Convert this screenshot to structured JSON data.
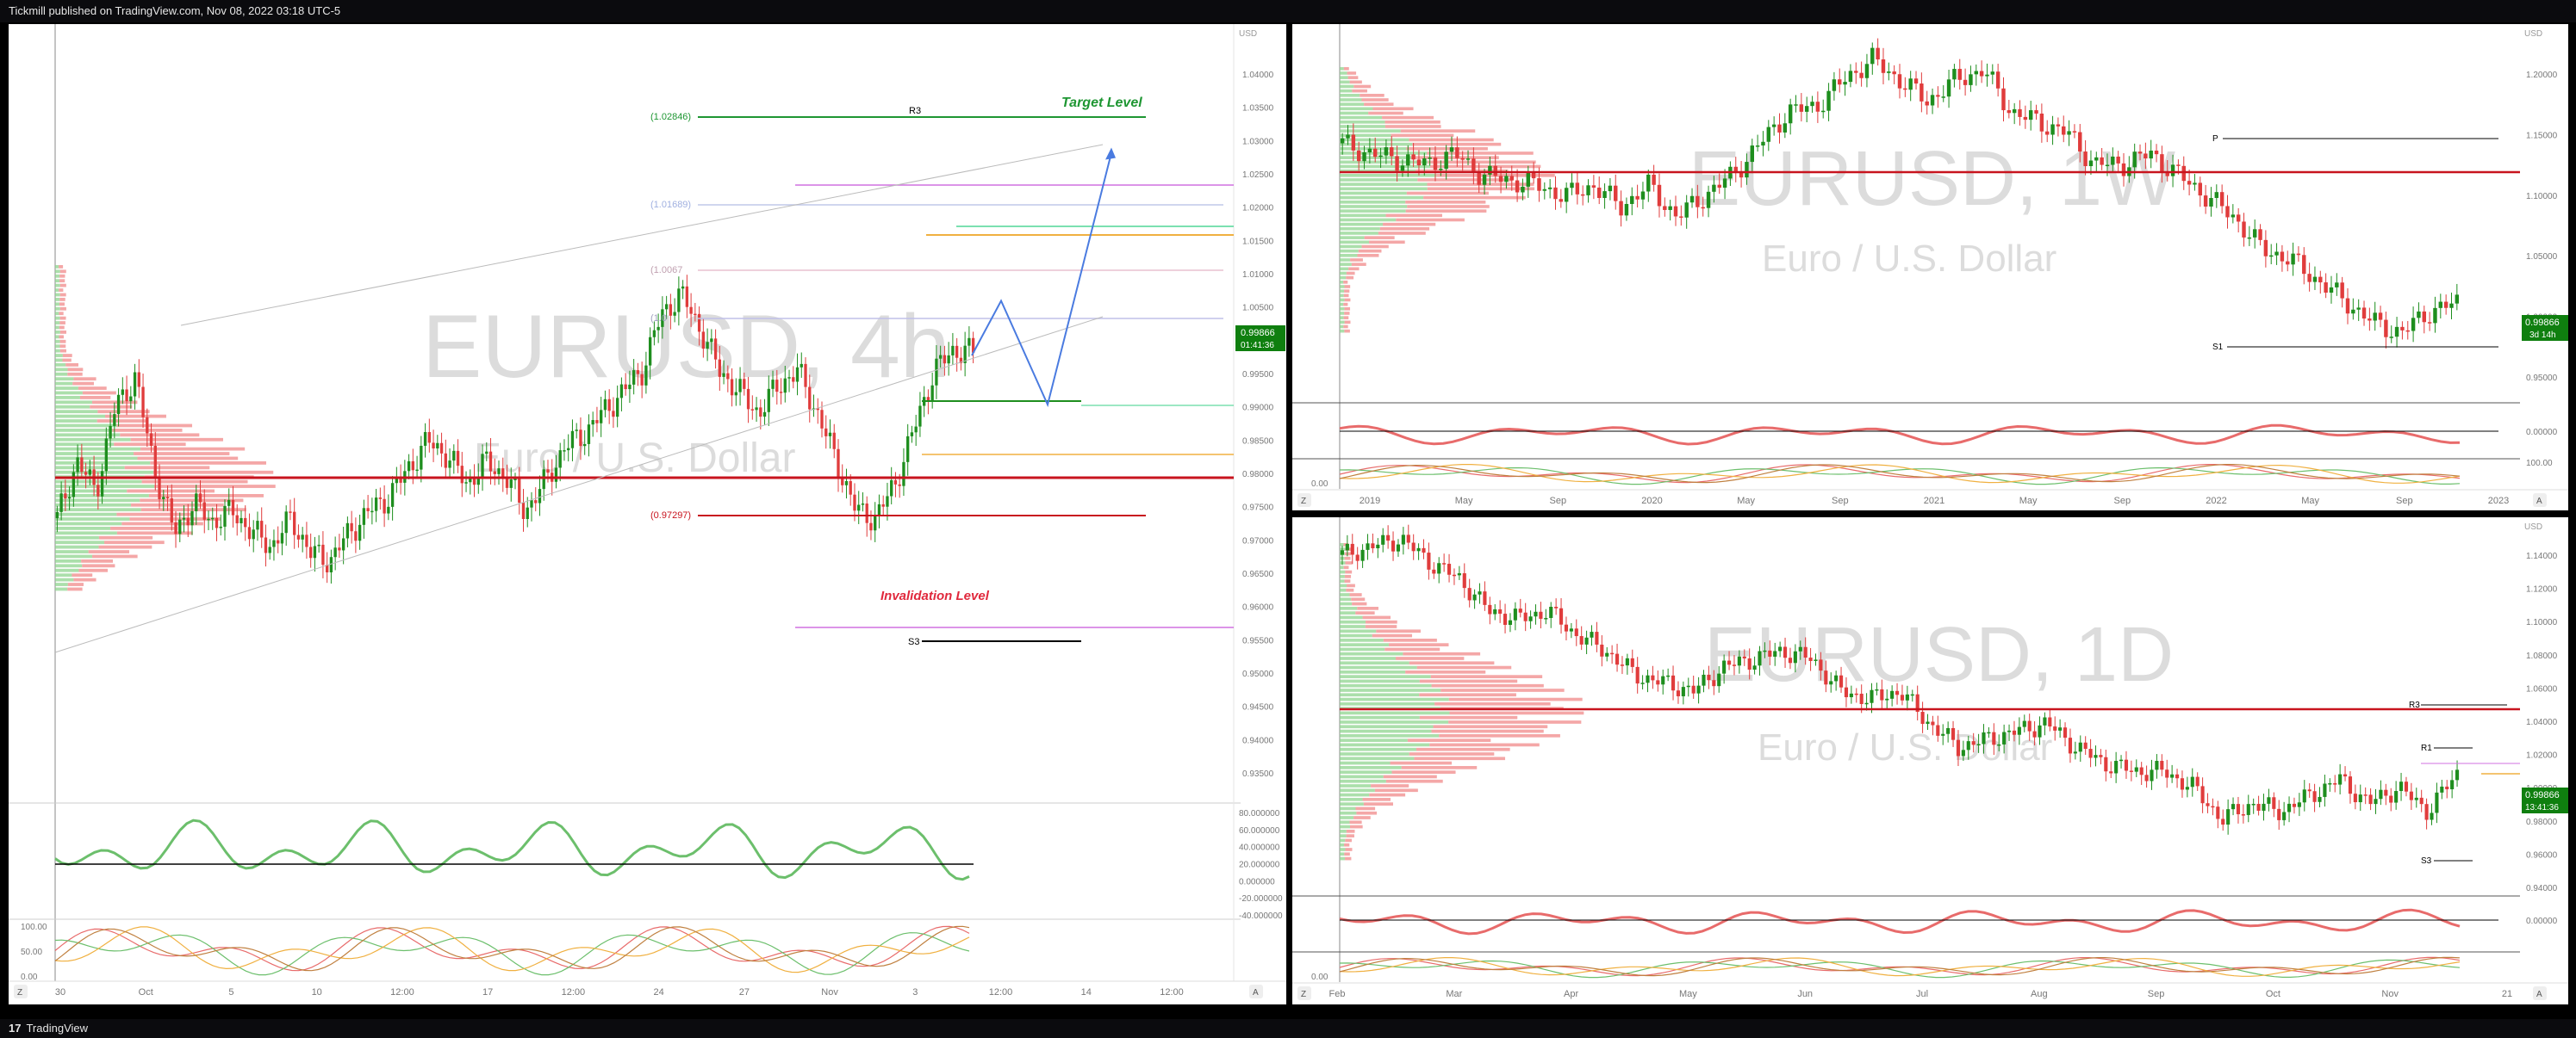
{
  "header": {
    "published_line": "Tickmill published on TradingView.com, Nov 08, 2022 03:18 UTC-5"
  },
  "footer": {
    "brand": "TradingView",
    "logo_glyph": "17"
  },
  "colors": {
    "up": "#1e8e1e",
    "down": "#e03c3c",
    "poc": "#c8141e",
    "target": "#1e9632",
    "invalidation": "#e0283c",
    "path": "#4a7be0",
    "badge": "#0f7f0f"
  },
  "panel_4h": {
    "symbol": "EURUSD, 4h",
    "description": "Euro / U.S. Dollar",
    "price_axis": [
      "1.04000",
      "1.03500",
      "1.03000",
      "1.02500",
      "1.02000",
      "1.01500",
      "1.01000",
      "1.00500",
      "1.00000",
      "0.99500",
      "0.99000",
      "0.98500",
      "0.98000",
      "0.97500",
      "0.97000",
      "0.96500",
      "0.96000",
      "0.95500",
      "0.95000",
      "0.94500",
      "0.94000",
      "0.93500"
    ],
    "ylim": [
      0.935,
      1.043
    ],
    "time_axis": [
      "30",
      "Oct",
      "5",
      "10",
      "12:00",
      "17",
      "12:00",
      "24",
      "27",
      "Nov",
      "3",
      "12:00",
      "14",
      "12:00"
    ],
    "last_price": "0.99866",
    "countdown": "01:41:36",
    "target_label": "Target Level",
    "target_value": "(1.02846)",
    "target_pivot": "R3",
    "invalidation_label": "Invalidation Level",
    "invalidation_value": "(0.97297)",
    "s3_label": "S3",
    "fib_1": "(1.01689)",
    "fib_2": "(1.0067",
    "fib_3": "(1.0",
    "path_points": [
      [
        0,
        0.9982
      ],
      [
        1,
        1.006
      ],
      [
        2,
        0.9912
      ],
      [
        3,
        1.0271
      ]
    ],
    "osc_axis": [
      "80.000000",
      "60.000000",
      "40.000000",
      "20.000000",
      "0.000000",
      "-20.000000",
      "-40.000000"
    ],
    "stoch_axis": [
      "100.00",
      "50.00",
      "0.00"
    ],
    "axis_currency": "USD",
    "z_button": "Z",
    "a_button": "A"
  },
  "panel_1w": {
    "symbol": "EURUSD, 1W",
    "description": "Euro / U.S. Dollar",
    "price_axis": [
      "1.20000",
      "1.15000",
      "1.10000",
      "1.05000",
      "1.00000",
      "0.95000"
    ],
    "ylim": [
      0.92,
      1.255
    ],
    "time_axis": [
      "2019",
      "May",
      "Sep",
      "2020",
      "May",
      "Sep",
      "2021",
      "May",
      "Sep",
      "2022",
      "May",
      "Sep",
      "2023"
    ],
    "last_price": "0.99866",
    "countdown": "3d 14h",
    "p_label": "P",
    "s1_label": "S1",
    "osc_zero": "0.00000",
    "stoch_top": "100.00",
    "stoch_bottom": "0.00",
    "axis_currency": "USD",
    "z_button": "Z",
    "a_button": "A"
  },
  "panel_1d": {
    "symbol": "EURUSD, 1D",
    "description": "Euro / U.S. Dollar",
    "price_axis": [
      "1.14000",
      "1.12000",
      "1.10000",
      "1.08000",
      "1.06000",
      "1.04000",
      "1.02000",
      "1.00000",
      "0.98000",
      "0.96000",
      "0.94000"
    ],
    "ylim": [
      0.933,
      1.153
    ],
    "time_axis": [
      "Feb",
      "Mar",
      "Apr",
      "May",
      "Jun",
      "Jul",
      "Aug",
      "Sep",
      "Oct",
      "Nov",
      "21"
    ],
    "last_price": "0.99866",
    "countdown": "13:41:36",
    "r3_label": "R3",
    "r1_label": "R1",
    "s3_label": "S3",
    "osc_zero": "0.00000",
    "stoch_bottom": "0.00",
    "axis_currency": "USD",
    "z_button": "Z",
    "a_button": "A"
  },
  "chart_data": [
    {
      "type": "candlestick",
      "title": "EURUSD, 4h",
      "subtitle": "Euro / U.S. Dollar",
      "ylim": [
        0.935,
        1.043
      ],
      "path": [
        0.99866,
        1.006,
        0.9912,
        1.0271
      ],
      "close_path": [
        0.975,
        0.983,
        0.979,
        0.991,
        0.995,
        0.982,
        0.973,
        0.977,
        0.9745,
        0.976,
        0.973,
        0.971,
        0.975,
        0.97,
        0.969,
        0.973,
        0.976,
        0.978,
        0.982,
        0.986,
        0.984,
        0.98,
        0.983,
        0.981,
        0.976,
        0.98,
        0.985,
        0.987,
        0.99,
        0.993,
        0.996,
        1.004,
        1.007,
        1.002,
        0.996,
        0.993,
        0.99,
        0.994,
        0.996,
        0.99,
        0.983,
        0.976,
        0.975,
        0.98,
        0.988,
        0.996,
        0.999,
        0.99866
      ],
      "levels": {
        "target": 1.02846,
        "invalidation": 0.97297,
        "poc": 0.9787
      }
    },
    {
      "type": "candlestick",
      "title": "EURUSD, 1W",
      "subtitle": "Euro / U.S. Dollar",
      "ylim": [
        0.92,
        1.255
      ],
      "close_path": [
        1.15,
        1.14,
        1.135,
        1.13,
        1.14,
        1.12,
        1.115,
        1.11,
        1.1,
        1.11,
        1.09,
        1.11,
        1.08,
        1.1,
        1.12,
        1.15,
        1.18,
        1.185,
        1.21,
        1.23,
        1.21,
        1.19,
        1.21,
        1.22,
        1.18,
        1.17,
        1.16,
        1.13,
        1.13,
        1.14,
        1.12,
        1.1,
        1.08,
        1.05,
        1.04,
        1.02,
        1.0,
        0.98,
        0.97,
        0.99,
        0.99866
      ],
      "levels": {
        "poc": 1.133,
        "p": 1.165,
        "s1": 0.975
      }
    },
    {
      "type": "candlestick",
      "title": "EURUSD, 1D",
      "subtitle": "Euro / U.S. Dollar",
      "ylim": [
        0.933,
        1.153
      ],
      "close_path": [
        1.135,
        1.14,
        1.145,
        1.13,
        1.12,
        1.1,
        1.095,
        1.1,
        1.085,
        1.075,
        1.06,
        1.055,
        1.05,
        1.065,
        1.07,
        1.075,
        1.07,
        1.05,
        1.045,
        1.05,
        1.03,
        1.015,
        1.02,
        1.025,
        1.03,
        1.015,
        1.005,
        1.0,
        1.0,
        0.99,
        0.97,
        0.98,
        0.975,
        0.985,
        0.995,
        0.98,
        0.99,
        0.975,
        0.99866
      ],
      "levels": {
        "poc": 1.052,
        "r3": 1.053,
        "r1": 1.037,
        "s3": 0.957
      }
    }
  ]
}
